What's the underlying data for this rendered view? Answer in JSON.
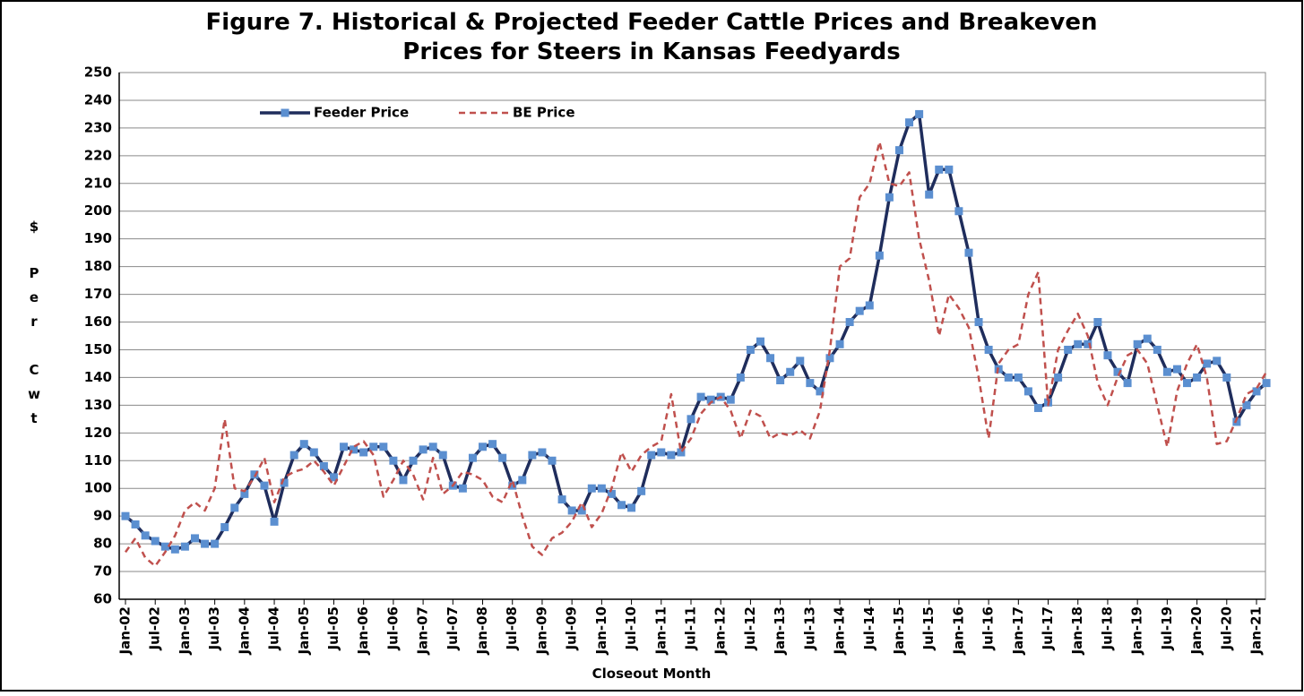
{
  "chart_data": {
    "type": "line",
    "title_lines": [
      "Figure 7.  Historical & Projected Feeder Cattle Prices and Breakeven",
      "Prices for Steers in Kansas Feedyards"
    ],
    "y_label_lines": [
      "$",
      "Per",
      "Cwt"
    ],
    "x_label": "Closeout Month",
    "categories": [
      "Jan-02",
      null,
      null,
      "Jul-02",
      null,
      null,
      "Jan-03",
      null,
      null,
      "Jul-03",
      null,
      null,
      "Jan-04",
      null,
      null,
      "Jul-04",
      null,
      null,
      "Jan-05",
      null,
      null,
      "Jul-05",
      null,
      null,
      "Jan-06",
      null,
      null,
      "Jul-06",
      null,
      null,
      "Jan-07",
      null,
      null,
      "Jul-07",
      null,
      null,
      "Jan-08",
      null,
      null,
      "Jul-08",
      null,
      null,
      "Jan-09",
      null,
      null,
      "Jul-09",
      null,
      null,
      "Jan-10",
      null,
      null,
      "Jul-10",
      null,
      null,
      "Jan-11",
      null,
      null,
      "Jul-11",
      null,
      null,
      "Jan-12",
      null,
      null,
      "Jul-12",
      null,
      null,
      "Jan-13",
      null,
      null,
      "Jul-13",
      null,
      null,
      "Jan-14",
      null,
      null,
      "Jul-14",
      null,
      null,
      "Jan-15",
      null,
      null,
      "Jul-15",
      null,
      null,
      "Jan-16",
      null,
      null,
      "Jul-16",
      null,
      null,
      "Jan-17",
      null,
      null,
      "Jul-17",
      null,
      null,
      "Jan-18",
      null,
      null,
      "Jul-18",
      null,
      null,
      "Jan-19",
      null,
      null,
      "Jul-19",
      null,
      null,
      "Jan-20",
      null,
      null,
      "Jul-20",
      null,
      null,
      "Jan-21",
      null
    ],
    "series": [
      {
        "name": "Feeder Price",
        "color": "#1f2d5c",
        "marker_color": "#5b8fd0",
        "values": [
          90,
          87,
          83,
          81,
          79,
          78,
          79,
          82,
          80,
          80,
          86,
          93,
          98,
          105,
          101,
          88,
          102,
          112,
          116,
          113,
          108,
          104,
          115,
          114,
          113,
          115,
          115,
          110,
          103,
          110,
          114,
          115,
          112,
          101,
          100,
          111,
          115,
          116,
          111,
          101,
          103,
          112,
          113,
          110,
          96,
          92,
          92,
          100,
          100,
          98,
          94,
          93,
          99,
          112,
          113,
          112,
          113,
          125,
          133,
          132,
          133,
          132,
          140,
          150,
          153,
          147,
          139,
          142,
          146,
          138,
          135,
          147,
          152,
          160,
          164,
          166,
          184,
          205,
          222,
          232,
          235,
          206,
          215,
          215,
          200,
          185,
          160,
          150,
          143,
          140,
          140,
          135,
          129,
          131,
          140,
          150,
          152,
          152,
          160,
          148,
          142,
          138,
          152,
          154,
          150,
          142,
          143,
          138,
          140,
          145,
          146,
          140,
          124,
          130,
          135,
          138
        ]
      },
      {
        "name": "BE Price",
        "color": "#c0504d",
        "dashed": true,
        "values": [
          77,
          82,
          75,
          72,
          77,
          83,
          92,
          95,
          92,
          100,
          125,
          100,
          99,
          104,
          111,
          95,
          104,
          106,
          107,
          110,
          106,
          101,
          108,
          115,
          117,
          112,
          97,
          103,
          110,
          105,
          96,
          111,
          98,
          101,
          106,
          105,
          103,
          97,
          95,
          103,
          90,
          79,
          76,
          82,
          84,
          88,
          95,
          86,
          91,
          100,
          113,
          106,
          112,
          115,
          117,
          134,
          113,
          118,
          127,
          131,
          133,
          128,
          118,
          128,
          126,
          118,
          120,
          119,
          121,
          118,
          128,
          150,
          180,
          183,
          205,
          210,
          225,
          210,
          209,
          214,
          190,
          175,
          155,
          170,
          165,
          158,
          140,
          118,
          145,
          150,
          152,
          170,
          178,
          130,
          150,
          157,
          163,
          155,
          138,
          130,
          140,
          148,
          150,
          145,
          130,
          115,
          135,
          145,
          152,
          140,
          116,
          117,
          125,
          134,
          136,
          142
        ]
      }
    ],
    "ylim": [
      60,
      250
    ],
    "yticks": [
      60,
      70,
      80,
      90,
      100,
      110,
      120,
      130,
      140,
      150,
      160,
      170,
      180,
      190,
      200,
      210,
      220,
      230,
      240,
      250
    ],
    "grid": true,
    "legend": "top-left"
  }
}
